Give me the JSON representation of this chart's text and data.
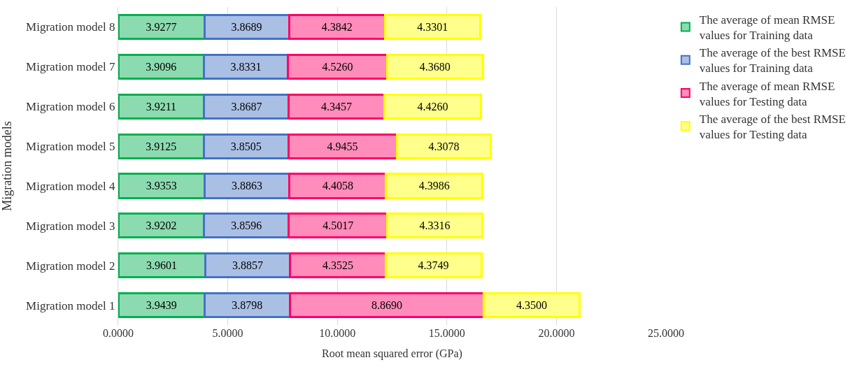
{
  "chart_data": {
    "type": "bar",
    "orientation": "horizontal",
    "stacked": true,
    "xlabel": "Root mean squared error (GPa)",
    "ylabel": "Migration models",
    "categories": [
      "Migration model 8",
      "Migration model 7",
      "Migration model 6",
      "Migration model 5",
      "Migration model 4",
      "Migration model 3",
      "Migration model 2",
      "Migration model 1"
    ],
    "series": [
      {
        "name": "The average of mean RMSE values for Training data",
        "color": "#00b050",
        "values": [
          3.9277,
          3.9096,
          3.9211,
          3.9125,
          3.9353,
          3.9202,
          3.9601,
          3.9439
        ],
        "value_labels": [
          "3.9277",
          "3.9096",
          "3.9211",
          "3.9125",
          "3.9353",
          "3.9202",
          "3.9601",
          "3.9439"
        ]
      },
      {
        "name": "The average of the best RMSE values for Training data",
        "color": "#4472c4",
        "values": [
          3.8689,
          3.8331,
          3.8687,
          3.8505,
          3.8863,
          3.8596,
          3.8857,
          3.8798
        ],
        "value_labels": [
          "3.8689",
          "3.8331",
          "3.8687",
          "3.8505",
          "3.8863",
          "3.8596",
          "3.8857",
          "3.8798"
        ]
      },
      {
        "name": "The average of mean RMSE values for Testing data",
        "color": "#ff0066",
        "values": [
          4.3842,
          4.526,
          4.3457,
          4.9455,
          4.4058,
          4.5017,
          4.3525,
          8.869
        ],
        "value_labels": [
          "4.3842",
          "4.5260",
          "4.3457",
          "4.9455",
          "4.4058",
          "4.5017",
          "4.3525",
          "8.8690"
        ]
      },
      {
        "name": "The average of the best RMSE values for Testing data",
        "color": "#ffff00",
        "values": [
          4.3301,
          4.368,
          4.426,
          4.3078,
          4.3986,
          4.3316,
          4.3749,
          4.35
        ],
        "value_labels": [
          "4.3301",
          "4.3680",
          "4.4260",
          "4.3078",
          "4.3986",
          "4.3316",
          "4.3749",
          "4.3500"
        ]
      }
    ],
    "xlim": [
      0,
      25
    ],
    "xticks": [
      {
        "value": 0,
        "label": "0.0000"
      },
      {
        "value": 5,
        "label": "5.0000"
      },
      {
        "value": 10,
        "label": "10.0000"
      },
      {
        "value": 15,
        "label": "15.0000"
      },
      {
        "value": 20,
        "label": "20.0000"
      },
      {
        "value": 25,
        "label": "25.0000"
      }
    ],
    "grid": "x",
    "legend": "right"
  }
}
